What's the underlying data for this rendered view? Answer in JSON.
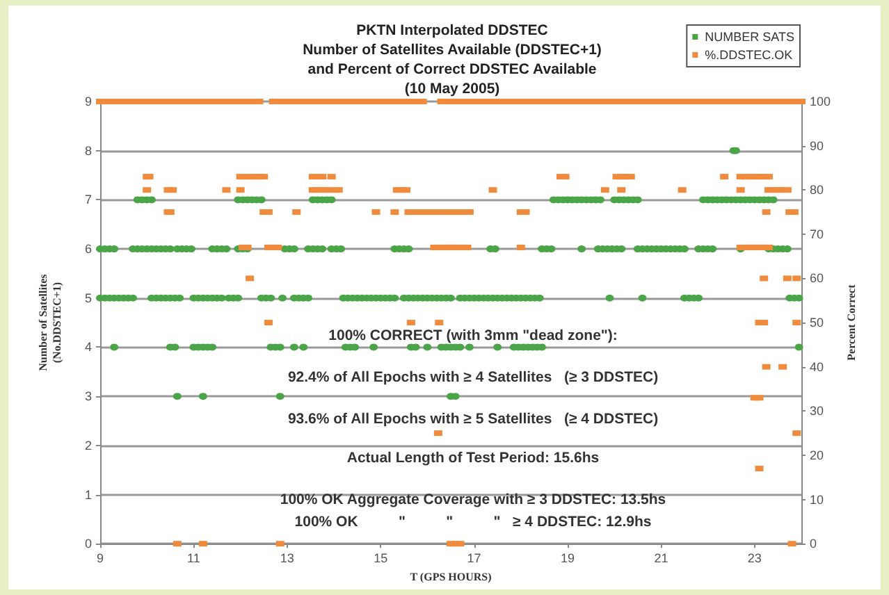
{
  "chart_data": {
    "type": "scatter",
    "title": "PKTN Interpolated DDSTEC\nNumber of Satellites Available (DDSTEC+1)\nand Percent of Correct DDSTEC Available\n(10 May 2005)",
    "xlabel": "T (GPS HOURS)",
    "ylabel": "Number of Satellites\n(No.DDSTEC+1)",
    "y2label": "Percent Correct",
    "xlim": [
      9,
      24
    ],
    "xticks": [
      9,
      11,
      13,
      15,
      17,
      19,
      21,
      23
    ],
    "ylim": [
      0,
      9
    ],
    "yticks": [
      0,
      1,
      2,
      3,
      4,
      5,
      6,
      7,
      8,
      9
    ],
    "y2lim": [
      0,
      100
    ],
    "y2ticks": [
      0,
      10,
      20,
      30,
      40,
      50,
      60,
      70,
      80,
      90,
      100
    ],
    "grid": "y",
    "legend": "top right",
    "annotations": [
      "100% CORRECT (with 3mm \"dead zone\"):",
      "92.4% of All Epochs with ≥ 4 Satellites   (≥ 3 DDSTEC)",
      "93.6% of All Epochs with ≥ 5 Satellites   (≥ 4 DDSTEC)",
      "Actual Length of Test Period: 15.6hs",
      "100% OK Aggregate Coverage with ≥ 3 DDSTEC: 13.5hs",
      "100% OK          \"          \"          \"   ≥ 4 DDSTEC: 12.9hs"
    ],
    "series": [
      {
        "name": "NUMBER SATS",
        "color": "#4aa546",
        "marker": "circle",
        "axis": "y",
        "x": [
          22.55,
          22.6,
          9.8,
          9.9,
          10.0,
          10.1,
          11.95,
          12.05,
          12.15,
          12.25,
          12.35,
          12.45,
          13.55,
          13.65,
          13.75,
          13.85,
          13.95,
          18.7,
          18.8,
          18.9,
          19.0,
          19.1,
          19.2,
          19.3,
          19.4,
          19.5,
          19.6,
          19.7,
          20.0,
          20.1,
          20.2,
          20.3,
          20.4,
          20.5,
          21.9,
          22.0,
          22.1,
          22.2,
          22.3,
          22.4,
          22.5,
          22.6,
          22.7,
          22.8,
          22.9,
          23.0,
          23.1,
          23.2,
          23.3,
          23.4,
          9.0,
          9.1,
          9.2,
          9.3,
          9.7,
          9.8,
          9.9,
          10.0,
          10.1,
          10.2,
          10.3,
          10.4,
          10.5,
          10.65,
          10.75,
          10.85,
          10.95,
          11.4,
          11.5,
          11.6,
          11.7,
          11.95,
          12.05,
          12.15,
          12.95,
          13.05,
          13.15,
          13.45,
          13.55,
          13.65,
          13.75,
          13.95,
          14.05,
          14.15,
          15.3,
          15.4,
          15.5,
          15.6,
          17.35,
          17.45,
          18.45,
          18.55,
          18.65,
          19.3,
          19.65,
          19.75,
          19.85,
          19.95,
          20.05,
          20.15,
          20.5,
          20.6,
          20.7,
          20.8,
          20.9,
          21.0,
          21.1,
          21.2,
          21.3,
          21.4,
          21.5,
          21.8,
          21.9,
          22.0,
          22.1,
          22.7,
          23.3,
          23.4,
          23.5,
          23.6,
          23.7,
          9.0,
          9.1,
          9.2,
          9.3,
          9.4,
          9.5,
          9.6,
          9.7,
          10.1,
          10.2,
          10.3,
          10.4,
          10.5,
          10.6,
          10.7,
          11.0,
          11.1,
          11.2,
          11.3,
          11.4,
          11.5,
          11.6,
          11.75,
          11.85,
          11.95,
          12.45,
          12.55,
          12.65,
          12.9,
          13.15,
          13.25,
          13.35,
          13.45,
          14.2,
          14.3,
          14.4,
          14.5,
          14.6,
          14.7,
          14.8,
          14.9,
          15.0,
          15.1,
          15.2,
          15.3,
          15.5,
          15.6,
          15.7,
          15.8,
          15.9,
          16.0,
          16.1,
          16.2,
          16.3,
          16.4,
          16.5,
          16.7,
          16.8,
          16.9,
          17.0,
          17.1,
          17.2,
          17.3,
          17.4,
          17.5,
          17.6,
          17.7,
          17.8,
          17.9,
          18.0,
          18.1,
          18.2,
          18.3,
          18.4,
          19.9,
          20.6,
          21.5,
          21.6,
          21.7,
          21.8,
          23.75,
          23.85,
          23.95,
          9.3,
          10.5,
          10.6,
          11.0,
          11.1,
          11.2,
          11.3,
          11.4,
          12.65,
          12.75,
          12.85,
          13.15,
          13.35,
          14.25,
          14.35,
          14.45,
          14.85,
          15.65,
          15.75,
          16.0,
          16.3,
          16.4,
          16.5,
          16.6,
          16.7,
          16.9,
          17.5,
          17.85,
          17.95,
          18.05,
          18.15,
          18.25,
          18.35,
          18.45,
          23.95,
          10.65,
          11.2,
          12.85,
          16.5,
          16.6
        ],
        "values": [
          8,
          8,
          7,
          7,
          7,
          7,
          7,
          7,
          7,
          7,
          7,
          7,
          7,
          7,
          7,
          7,
          7,
          7,
          7,
          7,
          7,
          7,
          7,
          7,
          7,
          7,
          7,
          7,
          7,
          7,
          7,
          7,
          7,
          7,
          7,
          7,
          7,
          7,
          7,
          7,
          7,
          7,
          7,
          7,
          7,
          7,
          7,
          7,
          7,
          7,
          6,
          6,
          6,
          6,
          6,
          6,
          6,
          6,
          6,
          6,
          6,
          6,
          6,
          6,
          6,
          6,
          6,
          6,
          6,
          6,
          6,
          6,
          6,
          6,
          6,
          6,
          6,
          6,
          6,
          6,
          6,
          6,
          6,
          6,
          6,
          6,
          6,
          6,
          6,
          6,
          6,
          6,
          6,
          6,
          6,
          6,
          6,
          6,
          6,
          6,
          6,
          6,
          6,
          6,
          6,
          6,
          6,
          6,
          6,
          6,
          6,
          6,
          6,
          6,
          6,
          6,
          6,
          6,
          6,
          6,
          6,
          5,
          5,
          5,
          5,
          5,
          5,
          5,
          5,
          5,
          5,
          5,
          5,
          5,
          5,
          5,
          5,
          5,
          5,
          5,
          5,
          5,
          5,
          5,
          5,
          5,
          5,
          5,
          5,
          5,
          5,
          5,
          5,
          5,
          5,
          5,
          5,
          5,
          5,
          5,
          5,
          5,
          5,
          5,
          5,
          5,
          5,
          5,
          5,
          5,
          5,
          5,
          5,
          5,
          5,
          5,
          5,
          5,
          5,
          5,
          5,
          5,
          5,
          5,
          5,
          5,
          5,
          5,
          5,
          5,
          5,
          5,
          5,
          5,
          5,
          5,
          5,
          5,
          5,
          5,
          5,
          5,
          5,
          5,
          4,
          4,
          4,
          4,
          4,
          4,
          4,
          4,
          4,
          4,
          4,
          4,
          4,
          4,
          4,
          4,
          4,
          4,
          4,
          4,
          4,
          4,
          4,
          4,
          4,
          4,
          4,
          4,
          4,
          4,
          4,
          4,
          4,
          4,
          4,
          3,
          3,
          3,
          3,
          3
        ]
      },
      {
        "name": "%.DDSTEC.OK",
        "color": "#f08a3c",
        "marker": "square",
        "axis": "y2",
        "x": [
          9.0,
          9.1,
          9.2,
          9.3,
          9.4,
          9.5,
          9.6,
          9.7,
          9.8,
          9.9,
          10.0,
          10.1,
          10.2,
          10.3,
          10.4,
          10.5,
          10.6,
          10.7,
          10.8,
          10.9,
          11.0,
          11.1,
          11.2,
          11.3,
          11.4,
          11.5,
          11.6,
          11.7,
          11.8,
          11.9,
          12.0,
          12.1,
          12.2,
          12.3,
          12.4,
          12.7,
          12.8,
          12.9,
          13.0,
          13.1,
          13.2,
          13.3,
          13.4,
          13.5,
          13.6,
          13.7,
          13.8,
          13.9,
          14.0,
          14.1,
          14.2,
          14.3,
          14.4,
          14.5,
          14.6,
          14.7,
          14.8,
          14.9,
          15.0,
          15.1,
          15.2,
          15.3,
          15.4,
          15.5,
          15.6,
          15.7,
          15.8,
          15.9,
          16.3,
          16.4,
          16.5,
          16.6,
          16.7,
          16.8,
          16.9,
          17.0,
          17.1,
          17.2,
          17.3,
          17.4,
          17.5,
          17.6,
          17.7,
          17.8,
          17.9,
          18.0,
          18.1,
          18.2,
          18.3,
          18.4,
          18.5,
          18.6,
          18.7,
          18.8,
          18.9,
          19.0,
          19.1,
          19.2,
          19.3,
          19.4,
          19.5,
          19.6,
          19.7,
          19.8,
          19.9,
          20.0,
          20.1,
          20.2,
          20.3,
          20.4,
          20.5,
          20.6,
          20.7,
          20.8,
          20.9,
          21.0,
          21.1,
          21.2,
          21.3,
          21.4,
          21.5,
          21.6,
          21.7,
          21.8,
          21.9,
          22.0,
          22.1,
          22.2,
          22.3,
          22.4,
          22.5,
          22.6,
          22.7,
          22.8,
          22.9,
          23.0,
          23.1,
          23.2,
          23.3,
          23.4,
          23.5,
          23.6,
          23.7,
          23.8,
          23.9,
          24.0,
          10.0,
          10.05,
          12.0,
          12.1,
          12.2,
          12.3,
          12.4,
          12.5,
          13.55,
          13.65,
          13.75,
          13.95,
          18.85,
          18.95,
          20.05,
          20.15,
          20.25,
          20.35,
          22.35,
          22.7,
          22.8,
          22.9,
          23.0,
          23.1,
          23.2,
          23.3,
          10.0,
          10.45,
          10.55,
          11.7,
          12.0,
          13.55,
          13.65,
          13.75,
          13.85,
          14.0,
          14.1,
          15.35,
          15.45,
          15.55,
          17.4,
          19.8,
          20.15,
          21.45,
          22.7,
          23.3,
          23.4,
          23.5,
          23.6,
          23.7,
          10.45,
          10.5,
          12.5,
          12.6,
          13.2,
          14.9,
          15.3,
          15.6,
          15.7,
          15.8,
          15.9,
          16.0,
          16.1,
          16.2,
          16.3,
          16.4,
          16.5,
          16.6,
          16.7,
          16.8,
          16.9,
          18.0,
          18.1,
          23.25,
          23.75,
          23.85,
          12.05,
          12.15,
          12.6,
          12.7,
          12.8,
          16.15,
          16.25,
          16.35,
          16.45,
          16.55,
          16.65,
          16.75,
          16.85,
          18.0,
          22.7,
          22.8,
          22.9,
          23.0,
          23.1,
          23.2,
          23.3,
          12.2,
          23.2,
          23.7,
          23.9,
          12.6,
          15.65,
          16.25,
          23.1,
          23.2,
          23.9,
          23.25,
          23.6,
          23.0,
          23.1,
          16.23,
          23.9,
          23.1,
          10.65,
          11.2,
          12.85,
          16.5,
          16.6,
          16.7,
          23.8
        ],
        "values": [
          100,
          100,
          100,
          100,
          100,
          100,
          100,
          100,
          100,
          100,
          100,
          100,
          100,
          100,
          100,
          100,
          100,
          100,
          100,
          100,
          100,
          100,
          100,
          100,
          100,
          100,
          100,
          100,
          100,
          100,
          100,
          100,
          100,
          100,
          100,
          100,
          100,
          100,
          100,
          100,
          100,
          100,
          100,
          100,
          100,
          100,
          100,
          100,
          100,
          100,
          100,
          100,
          100,
          100,
          100,
          100,
          100,
          100,
          100,
          100,
          100,
          100,
          100,
          100,
          100,
          100,
          100,
          100,
          100,
          100,
          100,
          100,
          100,
          100,
          100,
          100,
          100,
          100,
          100,
          100,
          100,
          100,
          100,
          100,
          100,
          100,
          100,
          100,
          100,
          100,
          100,
          100,
          100,
          100,
          100,
          100,
          100,
          100,
          100,
          100,
          100,
          100,
          100,
          100,
          100,
          100,
          100,
          100,
          100,
          100,
          100,
          100,
          100,
          100,
          100,
          100,
          100,
          100,
          100,
          100,
          100,
          100,
          100,
          100,
          100,
          100,
          100,
          100,
          100,
          100,
          100,
          100,
          100,
          100,
          100,
          100,
          100,
          100,
          100,
          100,
          100,
          100,
          100,
          100,
          100,
          100,
          83,
          83,
          83,
          83,
          83,
          83,
          83,
          83,
          83,
          83,
          83,
          83,
          83,
          83,
          83,
          83,
          83,
          83,
          83,
          83,
          83,
          83,
          83,
          83,
          83,
          83,
          80,
          80,
          80,
          80,
          80,
          80,
          80,
          80,
          80,
          80,
          80,
          80,
          80,
          80,
          80,
          80,
          80,
          80,
          80,
          80,
          80,
          80,
          80,
          80,
          75,
          75,
          75,
          75,
          75,
          75,
          75,
          75,
          75,
          75,
          75,
          75,
          75,
          75,
          75,
          75,
          75,
          75,
          75,
          75,
          75,
          75,
          75,
          75,
          75,
          75,
          67,
          67,
          67,
          67,
          67,
          67,
          67,
          67,
          67,
          67,
          67,
          67,
          67,
          67,
          67,
          67,
          67,
          67,
          67,
          67,
          67,
          60,
          60,
          60,
          60,
          50,
          50,
          50,
          50,
          50,
          50,
          40,
          40,
          33,
          33,
          25,
          25,
          17,
          0,
          0,
          0,
          0,
          0,
          0,
          0
        ]
      }
    ]
  }
}
